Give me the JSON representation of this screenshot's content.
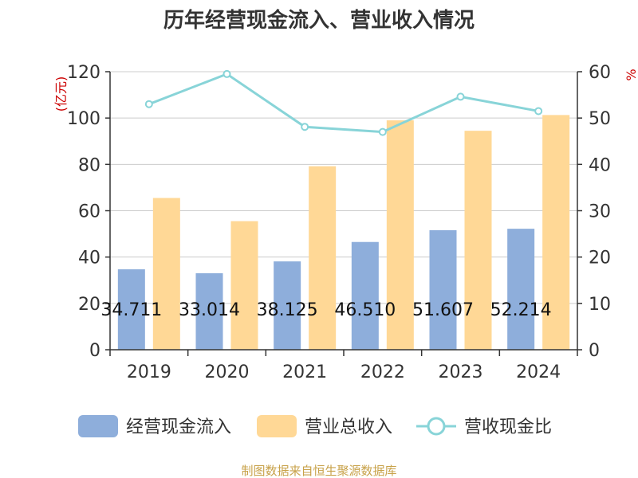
{
  "chart_data": {
    "type": "bar",
    "title": "历年经营现金流入、营业收入情况",
    "categories": [
      "2019",
      "2020",
      "2021",
      "2022",
      "2023",
      "2024"
    ],
    "ylabel": "(亿元)",
    "y2label": "%",
    "ylim": [
      0,
      120
    ],
    "y2lim": [
      0,
      60
    ],
    "yticks": [
      "0",
      "20",
      "40",
      "60",
      "80",
      "100",
      "120"
    ],
    "y2ticks": [
      "0",
      "10",
      "20",
      "30",
      "40",
      "50",
      "60"
    ],
    "grid": true,
    "legend_position": "bottom",
    "series": [
      {
        "name": "经营现金流入",
        "type": "bar",
        "axis": "left",
        "color": "#8eaedb",
        "values": [
          34.711,
          33.014,
          38.125,
          46.51,
          51.607,
          52.214
        ],
        "labels": [
          "34.711",
          "33.014",
          "38.125",
          "46.510",
          "51.607",
          "52.214"
        ]
      },
      {
        "name": "营业总收入",
        "type": "bar",
        "axis": "left",
        "color": "#ffd896",
        "values": [
          65.5,
          55.5,
          79.2,
          99.0,
          94.5,
          101.3
        ]
      },
      {
        "name": "营收现金比",
        "type": "line",
        "axis": "right",
        "color": "#88d4d8",
        "values": [
          53.0,
          59.5,
          48.1,
          47.0,
          54.6,
          51.5
        ]
      }
    ],
    "source": "制图数据来自恒生聚源数据库"
  }
}
